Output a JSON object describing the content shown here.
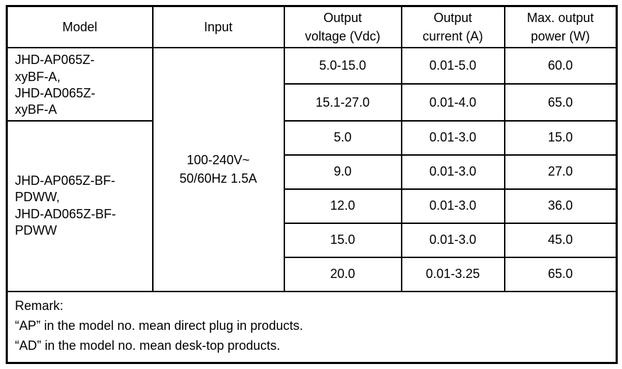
{
  "table": {
    "headers": {
      "model": "Model",
      "input": "Input",
      "voltage": "Output\nvoltage (Vdc)",
      "current": "Output\ncurrent (A)",
      "power": "Max. output\npower (W)"
    },
    "model_groups": [
      {
        "label": "JHD-AP065Z-\nxyBF-A,\nJHD-AD065Z-\nxyBF-A"
      },
      {
        "label": "JHD-AP065Z-BF-\nPDWW,\nJHD-AD065Z-BF-\nPDWW"
      }
    ],
    "input_value": "100-240V~\n50/60Hz 1.5A",
    "rows": [
      {
        "voltage": "5.0-15.0",
        "current": "0.01-5.0",
        "power": "60.0"
      },
      {
        "voltage": "15.1-27.0",
        "current": "0.01-4.0",
        "power": "65.0"
      },
      {
        "voltage": "5.0",
        "current": "0.01-3.0",
        "power": "15.0"
      },
      {
        "voltage": "9.0",
        "current": "0.01-3.0",
        "power": "27.0"
      },
      {
        "voltage": "12.0",
        "current": "0.01-3.0",
        "power": "36.0"
      },
      {
        "voltage": "15.0",
        "current": "0.01-3.0",
        "power": "45.0"
      },
      {
        "voltage": "20.0",
        "current": "0.01-3.25",
        "power": "65.0"
      }
    ],
    "remark": {
      "title": "Remark:",
      "line1": "“AP” in the model no. mean direct plug in products.",
      "line2": "“AD” in the model no. mean desk-top products."
    }
  }
}
